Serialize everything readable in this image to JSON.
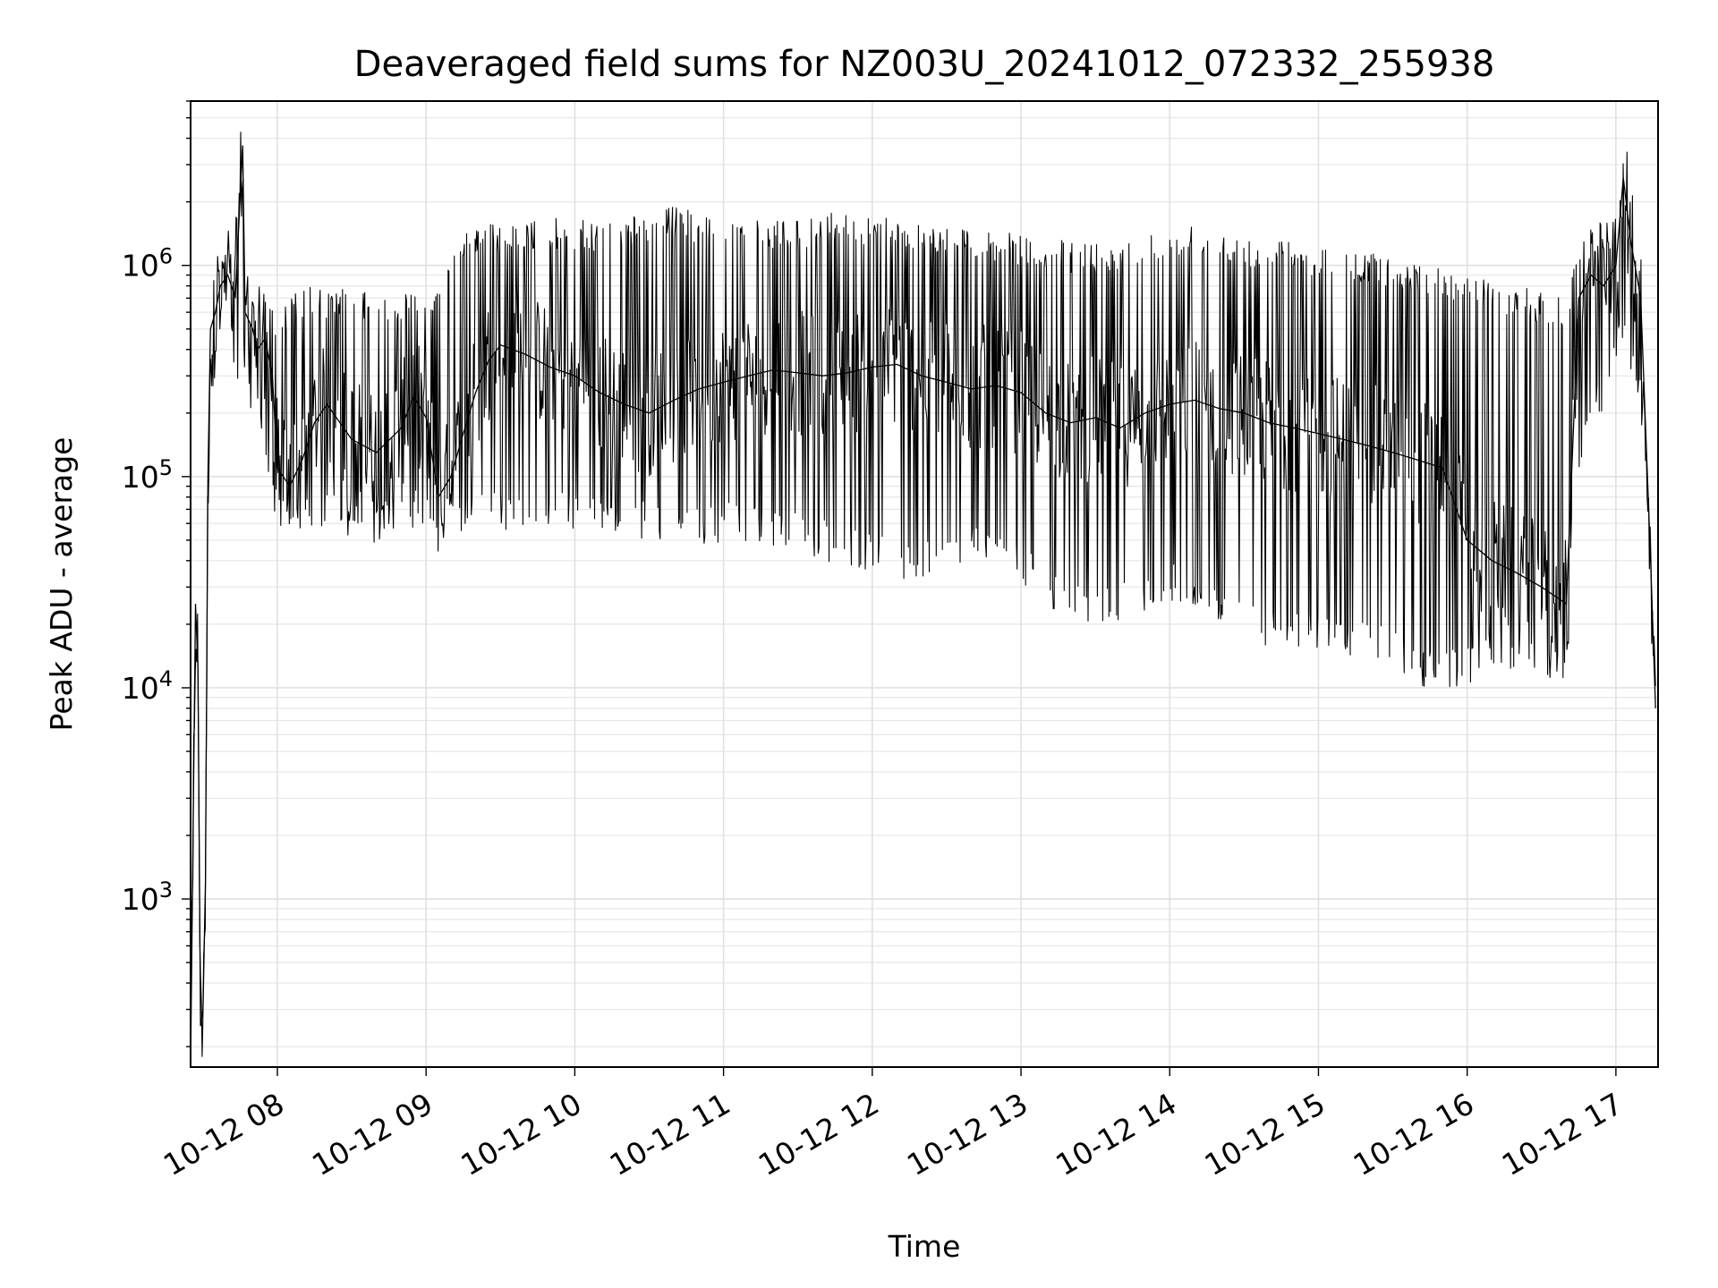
{
  "chart_data": {
    "type": "line",
    "title": "Deaveraged field sums for NZ003U_20241012_072332_255938",
    "xlabel": "Time",
    "ylabel": "Peak ADU - average",
    "xscale": "time",
    "yscale": "log",
    "xlim": [
      "2024-10-12 07:25",
      "2024-10-12 17:17"
    ],
    "ylim": [
      160,
      6000000
    ],
    "grid": "major and minor",
    "legend": "none",
    "line_color": "#000000",
    "x_tick_labels": [
      "10-12 08",
      "10-12 09",
      "10-12 10",
      "10-12 11",
      "10-12 12",
      "10-12 13",
      "10-12 14",
      "10-12 15",
      "10-12 16",
      "10-12 17"
    ],
    "y_ticks": [
      {
        "base": "10",
        "exp": "3",
        "value": 1000
      },
      {
        "base": "10",
        "exp": "4",
        "value": 10000
      },
      {
        "base": "10",
        "exp": "5",
        "value": 100000
      },
      {
        "base": "10",
        "exp": "6",
        "value": 1000000
      }
    ],
    "series": [
      {
        "x": [
          "07:25",
          "07:27",
          "07:28",
          "07:29",
          "07:30",
          "07:31",
          "07:32",
          "07:33",
          "07:35",
          "07:37",
          "07:40",
          "07:43",
          "07:46",
          "07:47",
          "07:50",
          "07:52",
          "07:55",
          "07:58",
          "08:00",
          "08:05",
          "08:10",
          "08:15",
          "08:20",
          "08:30",
          "08:40",
          "08:50",
          "08:55",
          "09:00",
          "09:05",
          "09:10",
          "09:15",
          "09:20",
          "09:25",
          "09:30",
          "09:40",
          "09:50",
          "10:00",
          "10:10",
          "10:20",
          "10:30",
          "10:40",
          "10:50",
          "11:00",
          "11:10",
          "11:20",
          "11:30",
          "11:40",
          "11:50",
          "12:00",
          "12:10",
          "12:20",
          "12:30",
          "12:40",
          "12:50",
          "13:00",
          "13:10",
          "13:20",
          "13:30",
          "13:40",
          "13:50",
          "14:00",
          "14:10",
          "14:20",
          "14:30",
          "14:40",
          "14:50",
          "15:00",
          "15:10",
          "15:20",
          "15:30",
          "15:40",
          "15:50",
          "16:00",
          "16:10",
          "16:20",
          "16:30",
          "16:40",
          "16:45",
          "16:50",
          "16:55",
          "17:00",
          "17:03",
          "17:06",
          "17:10",
          "17:14",
          "17:16"
        ],
        "y": [
          160,
          25000,
          12000,
          250,
          300,
          1200,
          100000,
          500000,
          600000,
          800000,
          900000,
          700000,
          3700000,
          600000,
          500000,
          400000,
          450000,
          300000,
          110000,
          90000,
          120000,
          180000,
          220000,
          150000,
          130000,
          170000,
          240000,
          190000,
          80000,
          100000,
          160000,
          250000,
          350000,
          420000,
          380000,
          330000,
          300000,
          250000,
          220000,
          200000,
          230000,
          260000,
          280000,
          300000,
          320000,
          310000,
          300000,
          310000,
          330000,
          340000,
          300000,
          280000,
          260000,
          270000,
          250000,
          200000,
          180000,
          190000,
          170000,
          200000,
          220000,
          230000,
          210000,
          200000,
          180000,
          170000,
          160000,
          150000,
          140000,
          130000,
          120000,
          110000,
          50000,
          40000,
          35000,
          30000,
          25000,
          700000,
          900000,
          800000,
          1000000,
          2600000,
          1300000,
          700000,
          40000,
          8000
        ],
        "band_low": [
          160,
          12000,
          8000,
          250,
          300,
          1000,
          60000,
          200000,
          350000,
          400000,
          500000,
          250000,
          400000,
          250000,
          200000,
          150000,
          120000,
          60000,
          55000,
          50000,
          55000,
          60000,
          55000,
          50000,
          48000,
          50000,
          55000,
          52000,
          48000,
          52000,
          55000,
          60000,
          65000,
          55000,
          55000,
          55000,
          55000,
          52000,
          50000,
          50000,
          50000,
          45000,
          50000,
          48000,
          45000,
          45000,
          40000,
          38000,
          35000,
          32000,
          30000,
          35000,
          40000,
          35000,
          30000,
          25000,
          20000,
          18000,
          20000,
          22000,
          25000,
          22000,
          18000,
          16000,
          15000,
          15000,
          15000,
          14000,
          13000,
          12000,
          10000,
          10000,
          10000,
          12000,
          12000,
          11000,
          10000,
          100000,
          150000,
          200000,
          300000,
          400000,
          300000,
          200000,
          30000,
          8000
        ],
        "band_high": [
          160,
          25000,
          12000,
          250,
          300,
          1200,
          150000,
          700000,
          1000000,
          1200000,
          1400000,
          1000000,
          3700000,
          800000,
          700000,
          600000,
          800000,
          700000,
          600000,
          700000,
          800000,
          850000,
          750000,
          800000,
          700000,
          750000,
          800000,
          700000,
          900000,
          1000000,
          1500000,
          1600000,
          1650000,
          1500000,
          1600000,
          1700000,
          1650000,
          1600000,
          1700000,
          1800000,
          1900000,
          1800000,
          1700000,
          1650000,
          1600000,
          1700000,
          1750000,
          1800000,
          1750000,
          1700000,
          1600000,
          1550000,
          1500000,
          1450000,
          1400000,
          1350000,
          1300000,
          1300000,
          1350000,
          1400000,
          1500000,
          1600000,
          1500000,
          1400000,
          1350000,
          1300000,
          1250000,
          1200000,
          1150000,
          1100000,
          1050000,
          1000000,
          900000,
          850000,
          800000,
          750000,
          700000,
          1400000,
          1600000,
          1500000,
          1700000,
          2600000,
          1500000,
          800000,
          40000,
          8000
        ]
      }
    ]
  }
}
